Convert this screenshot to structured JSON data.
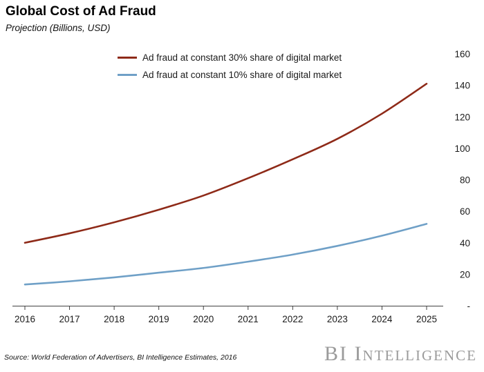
{
  "header": {
    "title": "Global Cost of Ad Fraud",
    "subtitle": "Projection (Billions, USD)"
  },
  "chart_data": {
    "type": "line",
    "title": "Global Cost of Ad Fraud",
    "subtitle": "Projection (Billions, USD)",
    "xlabel": "",
    "ylabel": "",
    "grid": false,
    "legend_position": "top",
    "categories": [
      "2016",
      "2017",
      "2018",
      "2019",
      "2020",
      "2021",
      "2022",
      "2023",
      "2024",
      "2025"
    ],
    "series": [
      {
        "name": "Ad fraud at constant 30% share of digital market",
        "color": "#8e2a18",
        "values": [
          40,
          46,
          53,
          61,
          70,
          81,
          93,
          106,
          122,
          141
        ]
      },
      {
        "name": "Ad fraud at constant 10% share of digital market",
        "color": "#6fa0c7",
        "values": [
          13.5,
          15.5,
          18,
          21,
          24,
          28,
          32.5,
          38,
          44.5,
          52
        ]
      }
    ],
    "ylim": [
      0,
      160
    ],
    "y_tick_values": [
      0,
      20,
      40,
      60,
      80,
      100,
      120,
      140,
      160
    ],
    "y_tick_labels": [
      "-",
      "20",
      "40",
      "60",
      "80",
      "100",
      "120",
      "140",
      "160"
    ]
  },
  "footer": {
    "source": "Source: World Federation of Advertisers, BI Intelligence Estimates, 2016",
    "logo": "BI Intelligence"
  }
}
